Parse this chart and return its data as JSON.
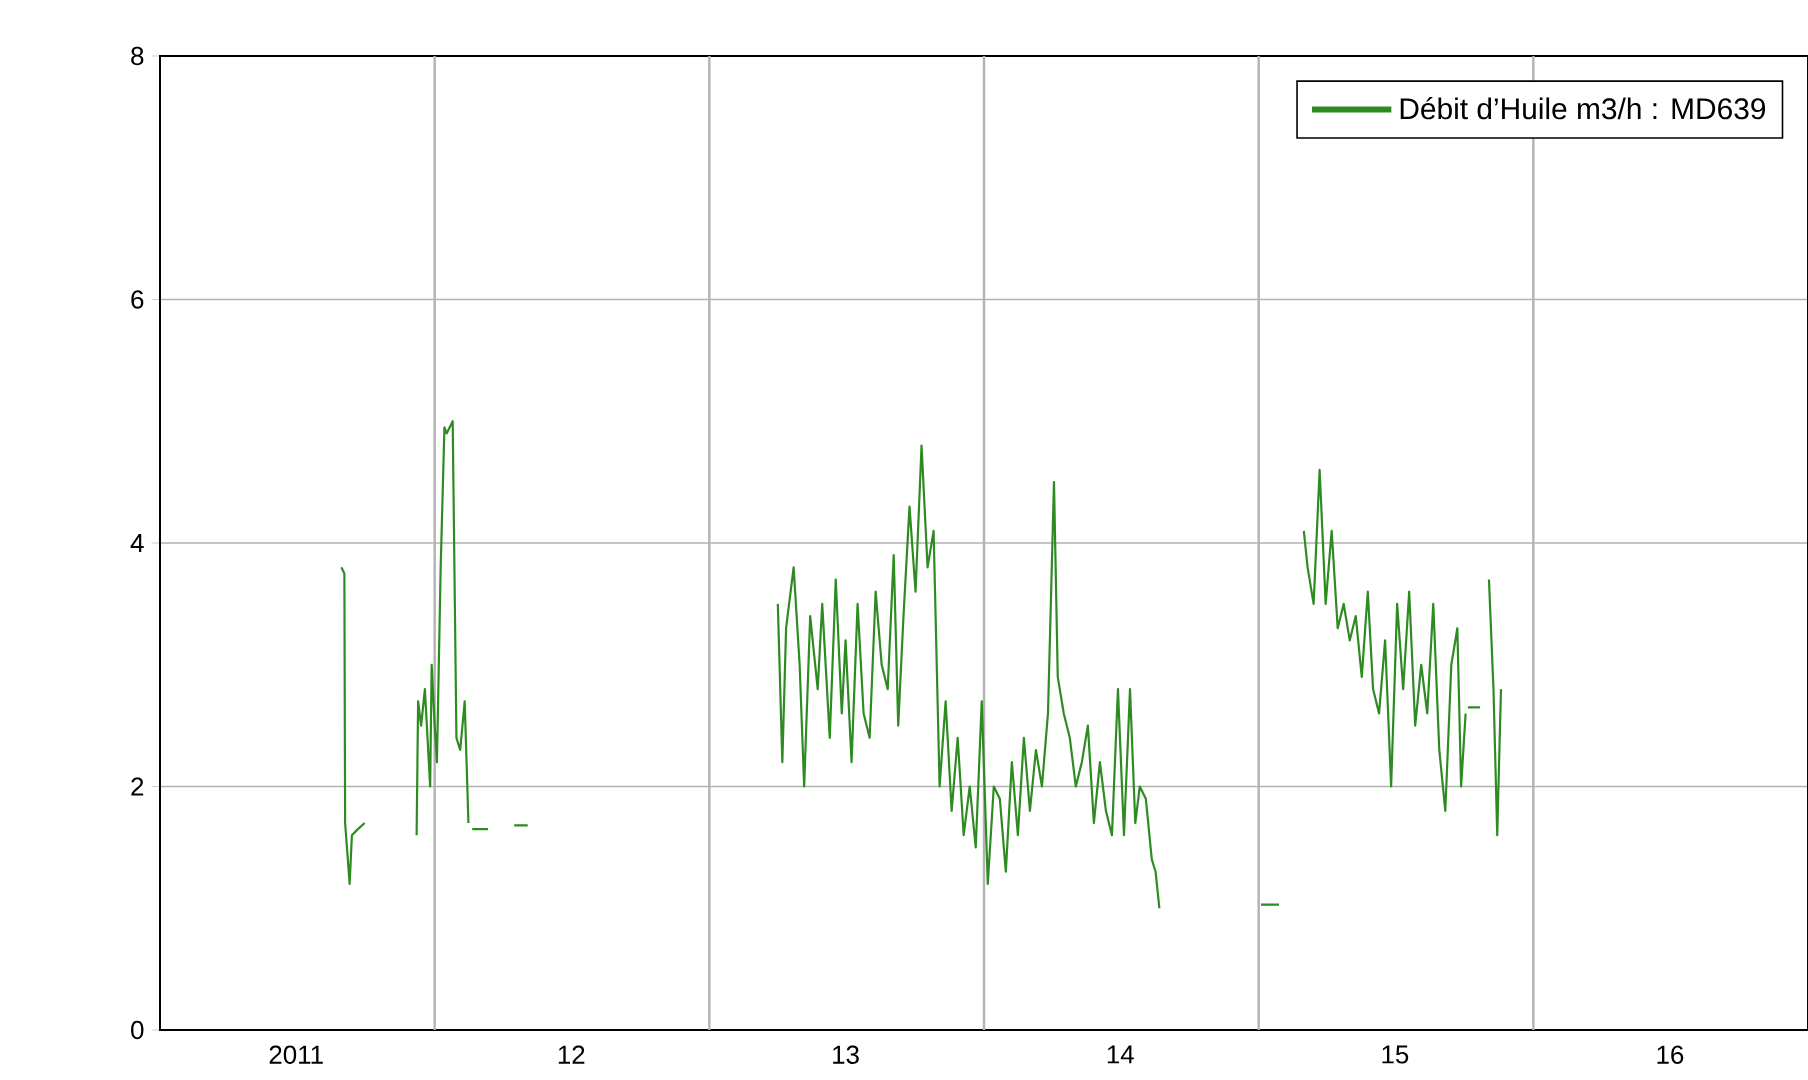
{
  "chart_data": {
    "type": "line",
    "xlim": [
      "2011-01-01",
      "2017-01-01"
    ],
    "ylim": [
      0,
      8
    ],
    "yticks": [
      0,
      2,
      4,
      6,
      8
    ],
    "xticks": [
      {
        "value": "2011-07-01",
        "label": "2011"
      },
      {
        "value": "2012-01-01",
        "label": null
      },
      {
        "value": "2012-07-01",
        "label": "12"
      },
      {
        "value": "2013-01-01",
        "label": null
      },
      {
        "value": "2013-07-01",
        "label": "13"
      },
      {
        "value": "2014-01-01",
        "label": null
      },
      {
        "value": "2014-07-01",
        "label": "14"
      },
      {
        "value": "2015-01-01",
        "label": null
      },
      {
        "value": "2015-07-01",
        "label": "15"
      },
      {
        "value": "2016-01-01",
        "label": null
      },
      {
        "value": "2016-07-01",
        "label": "16"
      }
    ],
    "grid": true,
    "legend": "top right",
    "line_style": "solid",
    "series": [
      {
        "name": "Débit d’Huile m3/h : MD639",
        "color": "#2e8b22",
        "x": [
          "2011-08-30",
          "2011-09-03",
          "2011-09-04",
          "2011-09-10",
          "2011-09-13",
          "2011-09-21",
          "2011-09-30",
          "2011-10-20",
          "2011-12-08",
          "2011-12-10",
          "2011-12-14",
          "2011-12-19",
          "2011-12-26",
          "2011-12-28",
          "2012-01-01",
          "2012-01-04",
          "2012-01-09",
          "2012-01-14",
          "2012-01-17",
          "2012-01-25",
          "2012-01-30",
          "2012-02-04",
          "2012-02-10",
          "2012-02-15",
          "2012-02-18",
          "2012-02-20",
          "2012-03-12",
          "2012-04-01",
          "2012-04-16",
          "2012-05-04",
          "2012-05-26",
          "2013-04-02",
          "2013-04-08",
          "2013-04-13",
          "2013-04-23",
          "2013-05-01",
          "2013-05-07",
          "2013-05-15",
          "2013-05-25",
          "2013-05-31",
          "2013-06-10",
          "2013-06-18",
          "2013-06-26",
          "2013-07-01",
          "2013-07-09",
          "2013-07-17",
          "2013-07-25",
          "2013-08-02",
          "2013-08-10",
          "2013-08-18",
          "2013-08-26",
          "2013-09-03",
          "2013-09-09",
          "2013-09-16",
          "2013-09-24",
          "2013-10-02",
          "2013-10-10",
          "2013-10-18",
          "2013-10-26",
          "2013-11-03",
          "2013-11-11",
          "2013-11-19",
          "2013-11-27",
          "2013-12-05",
          "2013-12-13",
          "2013-12-21",
          "2013-12-29",
          "2014-01-06",
          "2014-01-14",
          "2014-01-22",
          "2014-01-30",
          "2014-02-07",
          "2014-02-15",
          "2014-02-23",
          "2014-03-03",
          "2014-03-11",
          "2014-03-19",
          "2014-03-27",
          "2014-04-04",
          "2014-04-09",
          "2014-04-17",
          "2014-04-25",
          "2014-05-03",
          "2014-05-11",
          "2014-05-19",
          "2014-05-27",
          "2014-06-04",
          "2014-06-12",
          "2014-06-20",
          "2014-06-28",
          "2014-07-06",
          "2014-07-14",
          "2014-07-21",
          "2014-07-27",
          "2014-08-04",
          "2014-08-12",
          "2014-08-17",
          "2014-08-22",
          "2014-10-20",
          "2015-01-04",
          "2015-01-28",
          "2015-02-06",
          "2015-03-02",
          "2015-03-07",
          "2015-03-15",
          "2015-03-23",
          "2015-03-31",
          "2015-04-08",
          "2015-04-16",
          "2015-04-24",
          "2015-05-02",
          "2015-05-10",
          "2015-05-18",
          "2015-05-26",
          "2015-06-02",
          "2015-06-10",
          "2015-06-18",
          "2015-06-26",
          "2015-07-04",
          "2015-07-12",
          "2015-07-20",
          "2015-07-28",
          "2015-08-05",
          "2015-08-13",
          "2015-08-21",
          "2015-08-29",
          "2015-09-06",
          "2015-09-14",
          "2015-09-22",
          "2015-09-27",
          "2015-10-03",
          "2015-10-04",
          "2015-10-06",
          "2015-10-22",
          "2015-10-27",
          "2015-11-03",
          "2015-11-09",
          "2015-11-14",
          "2015-11-19"
        ],
        "values": [
          3.8,
          3.75,
          1.7,
          1.2,
          1.6,
          1.65,
          1.7,
          null,
          1.6,
          2.7,
          2.5,
          2.8,
          2.0,
          3.0,
          2.5,
          2.2,
          3.8,
          4.95,
          4.9,
          5.0,
          2.4,
          2.3,
          2.7,
          1.7,
          null,
          1.65,
          1.65,
          null,
          1.68,
          1.68,
          null,
          3.5,
          2.2,
          3.3,
          3.8,
          3.0,
          2.0,
          3.4,
          2.8,
          3.5,
          2.4,
          3.7,
          2.6,
          3.2,
          2.2,
          3.5,
          2.6,
          2.4,
          3.6,
          3.0,
          2.8,
          3.9,
          2.5,
          3.4,
          4.3,
          3.6,
          4.8,
          3.8,
          4.1,
          2.0,
          2.7,
          1.8,
          2.4,
          1.6,
          2.0,
          1.5,
          2.7,
          1.2,
          2.0,
          1.9,
          1.3,
          2.2,
          1.6,
          2.4,
          1.8,
          2.3,
          2.0,
          2.6,
          4.5,
          2.9,
          2.6,
          2.4,
          2.0,
          2.2,
          2.5,
          1.7,
          2.2,
          1.8,
          1.6,
          2.8,
          1.6,
          2.8,
          1.7,
          2.0,
          1.9,
          1.4,
          1.3,
          1.0,
          null,
          1.03,
          1.03,
          null,
          4.1,
          3.8,
          3.5,
          4.6,
          3.5,
          4.1,
          3.3,
          3.5,
          3.2,
          3.4,
          2.9,
          3.6,
          2.8,
          2.6,
          3.2,
          2.0,
          3.5,
          2.8,
          3.6,
          2.5,
          3.0,
          2.6,
          3.5,
          2.3,
          1.8,
          3.0,
          3.3,
          2.0,
          2.6,
          null,
          2.65,
          2.65,
          null,
          3.7,
          2.8,
          1.6,
          2.8
        ]
      }
    ]
  }
}
